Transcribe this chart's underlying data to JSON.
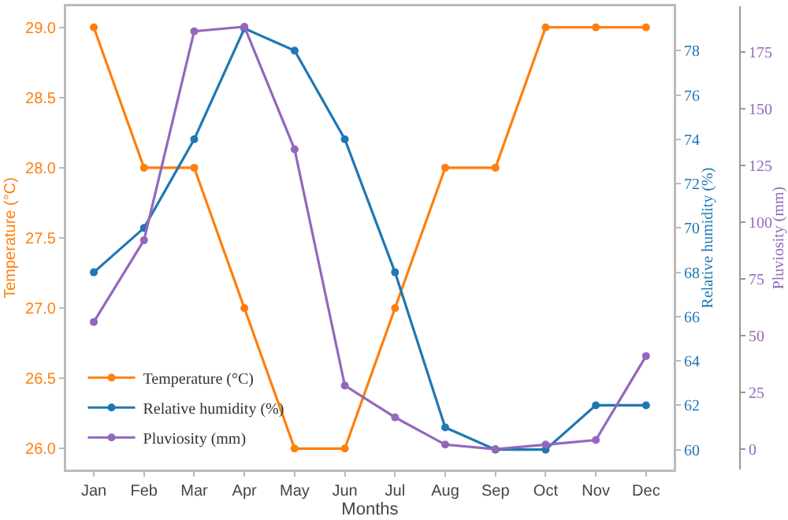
{
  "chart_data": {
    "type": "line",
    "xlabel": "Months",
    "ylabel": "Temperature (°C)",
    "y2label": "Relative humidity (%)",
    "y3label": "Pluviosity (mm)",
    "categories": [
      "Jan",
      "Feb",
      "Mar",
      "Apr",
      "May",
      "Jun",
      "Jul",
      "Aug",
      "Sep",
      "Oct",
      "Nov",
      "Dec"
    ],
    "series": [
      {
        "name": "Temperature (°C)",
        "color": "#ff7f0e",
        "values": [
          29,
          28,
          28,
          27,
          26,
          26,
          27,
          28,
          28,
          29,
          29,
          29
        ]
      },
      {
        "name": "Relative humidity (%)",
        "color": "#1f77b4",
        "axis": "y2",
        "values": [
          68,
          70,
          74,
          79,
          78,
          74,
          68,
          61,
          60,
          60,
          62,
          62
        ]
      },
      {
        "name": "Pluviosity (mm)",
        "color": "#9467bd",
        "axis": "y3",
        "values": [
          56,
          92,
          184,
          186,
          132,
          28,
          14,
          2,
          0,
          2,
          4,
          41
        ]
      }
    ],
    "ylim": [
      25.85,
      29.15
    ],
    "yticks": [
      {
        "value": 26,
        "label": "26.0"
      },
      {
        "value": 26.5,
        "label": "26.5"
      },
      {
        "value": 27,
        "label": "27.0"
      },
      {
        "value": 27.5,
        "label": "27.5"
      },
      {
        "value": 28,
        "label": "28.0"
      },
      {
        "value": 28.5,
        "label": "28.5"
      },
      {
        "value": 29,
        "label": "29.0"
      }
    ],
    "y2lim": [
      59.1,
      80
    ],
    "y2ticks": [
      60,
      62,
      64,
      66,
      68,
      70,
      72,
      74,
      76,
      78
    ],
    "y3lim": [
      -9,
      195
    ],
    "y3ticks": [
      0,
      25,
      50,
      75,
      100,
      125,
      150,
      175
    ],
    "grid": false,
    "legend": "bottom left",
    "marker": "circle",
    "line_style": "solid"
  }
}
